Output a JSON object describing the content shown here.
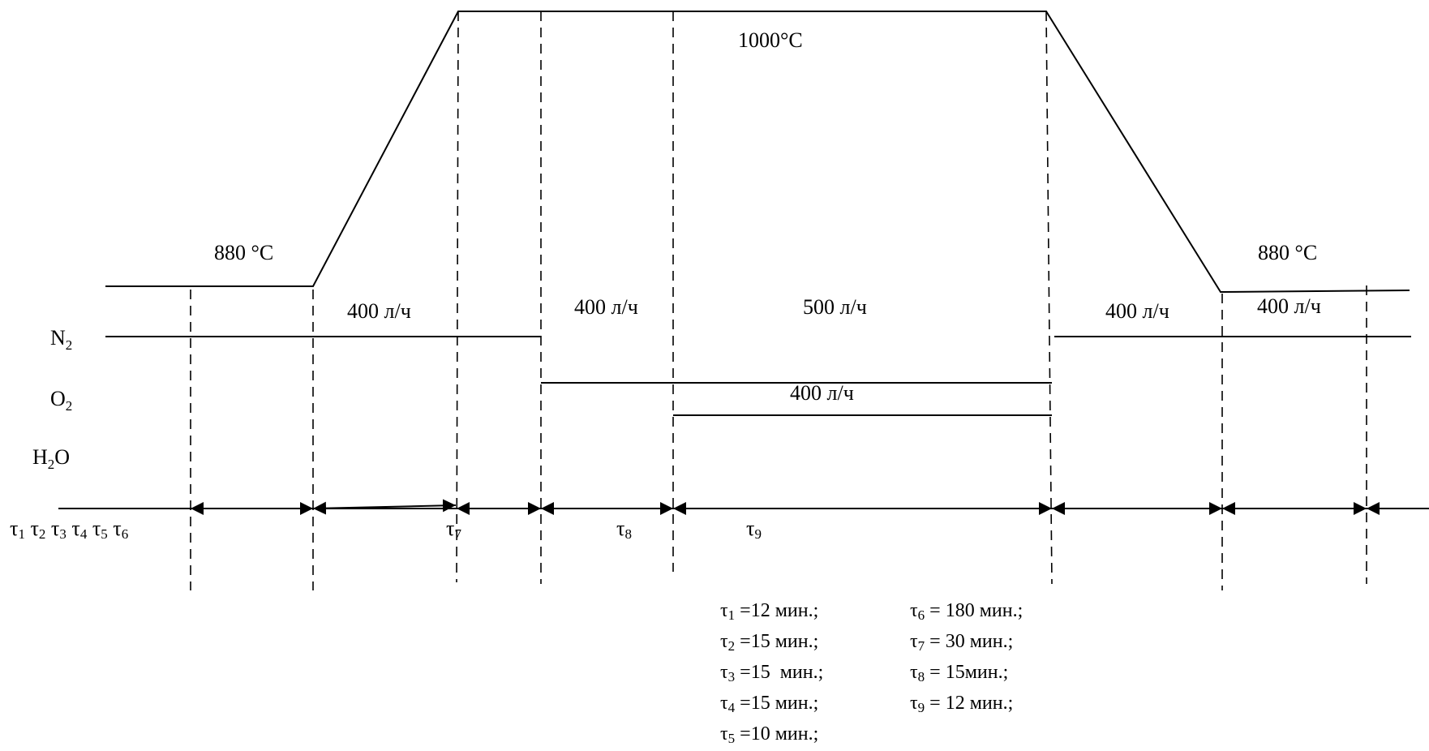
{
  "temperature": {
    "left_label": "880 °C",
    "top_label": "1000°C",
    "right_label": "880 °C"
  },
  "gases": {
    "n2": {
      "base": "N",
      "sub": "2"
    },
    "o2": {
      "base": "O",
      "sub": "2"
    },
    "h2o": {
      "base": "H",
      "sub": "2",
      "tail": "O"
    }
  },
  "flow_labels": {
    "n2_left": "400 л/ч",
    "n2_mid": "400 л/ч",
    "n2_peak": "500 л/ч",
    "n2_right1": "400 л/ч",
    "n2_right2": "400 л/ч",
    "o2": "400 л/ч"
  },
  "time_labels": {
    "group": [
      {
        "base": "τ",
        "num": "1"
      },
      {
        "base": "τ",
        "num": "2"
      },
      {
        "base": "τ",
        "num": "3"
      },
      {
        "base": "τ",
        "num": "4"
      },
      {
        "base": "τ",
        "num": "5"
      },
      {
        "base": "τ",
        "num": "6"
      }
    ],
    "t7": {
      "base": "τ",
      "num": "7"
    },
    "t8": {
      "base": "τ",
      "num": "8"
    },
    "t9": {
      "base": "τ",
      "num": "9"
    }
  },
  "legend": {
    "col1": [
      {
        "base": "τ",
        "num": "1",
        "text": " =12 мин.;"
      },
      {
        "base": "τ",
        "num": "2",
        "text": " =15 мин.;"
      },
      {
        "base": "τ",
        "num": "3",
        "text": " =15  мин.;"
      },
      {
        "base": "τ",
        "num": "4",
        "text": " =15 мин.;"
      },
      {
        "base": "τ",
        "num": "5",
        "text": " =10 мин.;"
      }
    ],
    "col2": [
      {
        "base": "τ",
        "num": "6",
        "text": " = 180 мин.;"
      },
      {
        "base": "τ",
        "num": "7",
        "text": " = 30 мин.;"
      },
      {
        "base": "τ",
        "num": "8",
        "text": " = 15мин.;"
      },
      {
        "base": "τ",
        "num": "9",
        "text": " = 12 мин.;"
      }
    ]
  }
}
